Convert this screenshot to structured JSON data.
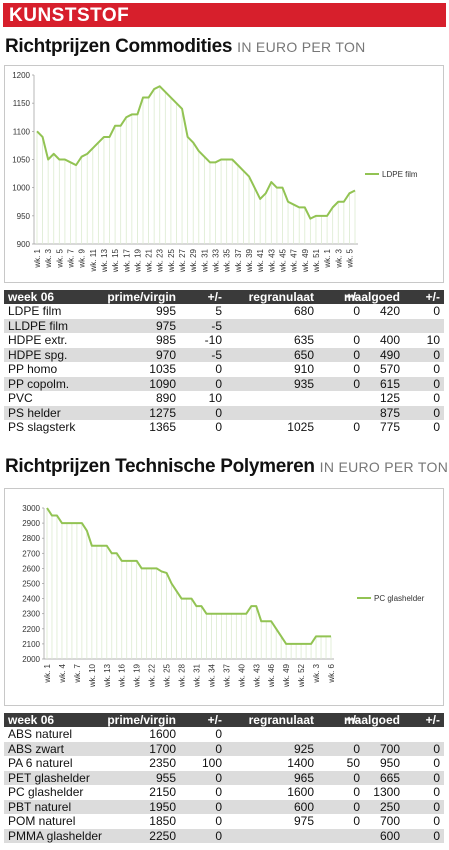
{
  "header": {
    "section": "KUNSTSTOF"
  },
  "sections": [
    {
      "title": "Richtprijzen Commodities",
      "unit": "IN EURO PER TON"
    },
    {
      "title": "Richtprijzen Technische Polymeren",
      "unit": "IN EURO PER TON"
    }
  ],
  "chart_data": [
    {
      "type": "line",
      "categories": [
        "wk. 1",
        null,
        "wk. 3",
        null,
        "wk. 5",
        null,
        "wk. 7",
        null,
        "wk. 9",
        null,
        "wk. 11",
        null,
        "wk. 13",
        null,
        "wk. 15",
        null,
        "wk. 17",
        null,
        "wk. 19",
        null,
        "wk. 21",
        null,
        "wk. 23",
        null,
        "wk. 25",
        null,
        "wk. 27",
        null,
        "wk. 29",
        null,
        "wk. 31",
        null,
        "wk. 33",
        null,
        "wk. 35",
        null,
        "wk. 37",
        null,
        "wk. 39",
        null,
        "wk. 41",
        null,
        "wk. 43",
        null,
        "wk. 45",
        null,
        "wk. 47",
        null,
        "wk. 49",
        null,
        "wk. 51",
        null,
        "wk. 1",
        null,
        "wk. 3",
        null,
        "wk. 5",
        null
      ],
      "series": [
        {
          "name": "LDPE film",
          "color": "#92c353",
          "values": [
            1100,
            1090,
            1050,
            1060,
            1050,
            1050,
            1045,
            1040,
            1055,
            1060,
            1070,
            1080,
            1090,
            1090,
            1110,
            1110,
            1125,
            1130,
            1130,
            1160,
            1160,
            1175,
            1180,
            1170,
            1160,
            1150,
            1140,
            1090,
            1080,
            1065,
            1055,
            1045,
            1045,
            1050,
            1050,
            1050,
            1040,
            1030,
            1020,
            1000,
            980,
            990,
            1010,
            1000,
            1000,
            975,
            970,
            965,
            965,
            945,
            950,
            950,
            950,
            965,
            975,
            975,
            990,
            995
          ]
        }
      ],
      "ylim": [
        900,
        1200
      ],
      "yticks": [
        900,
        950,
        1000,
        1050,
        1100,
        1150,
        1200
      ],
      "grid": false,
      "legend": "right"
    },
    {
      "type": "line",
      "categories": [
        "wk. 1",
        null,
        null,
        "wk. 4",
        null,
        null,
        "wk. 7",
        null,
        null,
        "wk. 10",
        null,
        null,
        "wk. 13",
        null,
        null,
        "wk. 16",
        null,
        null,
        "wk. 19",
        null,
        null,
        "wk. 22",
        null,
        null,
        "wk. 25",
        null,
        null,
        "wk. 28",
        null,
        null,
        "wk. 31",
        null,
        null,
        "wk. 34",
        null,
        null,
        "wk. 37",
        null,
        null,
        "wk. 40",
        null,
        null,
        "wk. 43",
        null,
        null,
        "wk. 46",
        null,
        null,
        "wk. 49",
        null,
        null,
        "wk. 52",
        null,
        null,
        "wk. 3",
        null,
        null,
        "wk. 6"
      ],
      "series": [
        {
          "name": "PC glashelder",
          "color": "#92c353",
          "values": [
            3000,
            2950,
            2950,
            2900,
            2900,
            2900,
            2900,
            2900,
            2850,
            2750,
            2750,
            2750,
            2750,
            2700,
            2700,
            2650,
            2650,
            2650,
            2650,
            2600,
            2600,
            2600,
            2600,
            2580,
            2570,
            2500,
            2450,
            2400,
            2400,
            2400,
            2350,
            2350,
            2300,
            2300,
            2300,
            2300,
            2300,
            2300,
            2300,
            2300,
            2300,
            2350,
            2350,
            2250,
            2250,
            2250,
            2200,
            2150,
            2100,
            2100,
            2100,
            2100,
            2100,
            2100,
            2150,
            2150,
            2150,
            2150
          ]
        }
      ],
      "ylim": [
        2000,
        3000
      ],
      "yticks": [
        2000,
        2100,
        2200,
        2300,
        2400,
        2500,
        2600,
        2700,
        2800,
        2900,
        3000
      ],
      "grid": false,
      "legend": "right"
    }
  ],
  "tables": [
    {
      "columns": [
        "week 06",
        "prime/virgin",
        "+/-",
        "regranulaat",
        "+/-",
        "maalgoed",
        "+/-"
      ],
      "rows": [
        [
          "LDPE film",
          995,
          5,
          680,
          0,
          420,
          0
        ],
        [
          "LLDPE film",
          975,
          -5,
          null,
          null,
          null,
          null
        ],
        [
          "HDPE extr.",
          985,
          -10,
          635,
          0,
          400,
          10
        ],
        [
          "HDPE spg.",
          970,
          -5,
          650,
          0,
          490,
          0
        ],
        [
          "PP homo",
          1035,
          0,
          910,
          0,
          570,
          0
        ],
        [
          "PP copolm.",
          1090,
          0,
          935,
          0,
          615,
          0
        ],
        [
          "PVC",
          890,
          10,
          null,
          null,
          125,
          0
        ],
        [
          "PS helder",
          1275,
          0,
          null,
          null,
          875,
          0
        ],
        [
          "PS slagsterk",
          1365,
          0,
          1025,
          0,
          775,
          0
        ]
      ]
    },
    {
      "columns": [
        "week 06",
        "prime/virgin",
        "+/-",
        "regranulaat",
        "+/-",
        "maalgoed",
        "+/-"
      ],
      "rows": [
        [
          "ABS naturel",
          1600,
          0,
          null,
          null,
          null,
          null
        ],
        [
          "ABS zwart",
          1700,
          0,
          925,
          0,
          700,
          0
        ],
        [
          "PA 6 naturel",
          2350,
          100,
          1400,
          50,
          950,
          0
        ],
        [
          "PET glashelder",
          955,
          0,
          965,
          0,
          665,
          0
        ],
        [
          "PC glashelder",
          2150,
          0,
          1600,
          0,
          1300,
          0
        ],
        [
          "PBT naturel",
          1950,
          0,
          600,
          0,
          250,
          0
        ],
        [
          "POM naturel",
          1850,
          0,
          975,
          0,
          700,
          0
        ],
        [
          "PMMA glashelder",
          2250,
          0,
          null,
          null,
          600,
          0
        ]
      ]
    }
  ]
}
